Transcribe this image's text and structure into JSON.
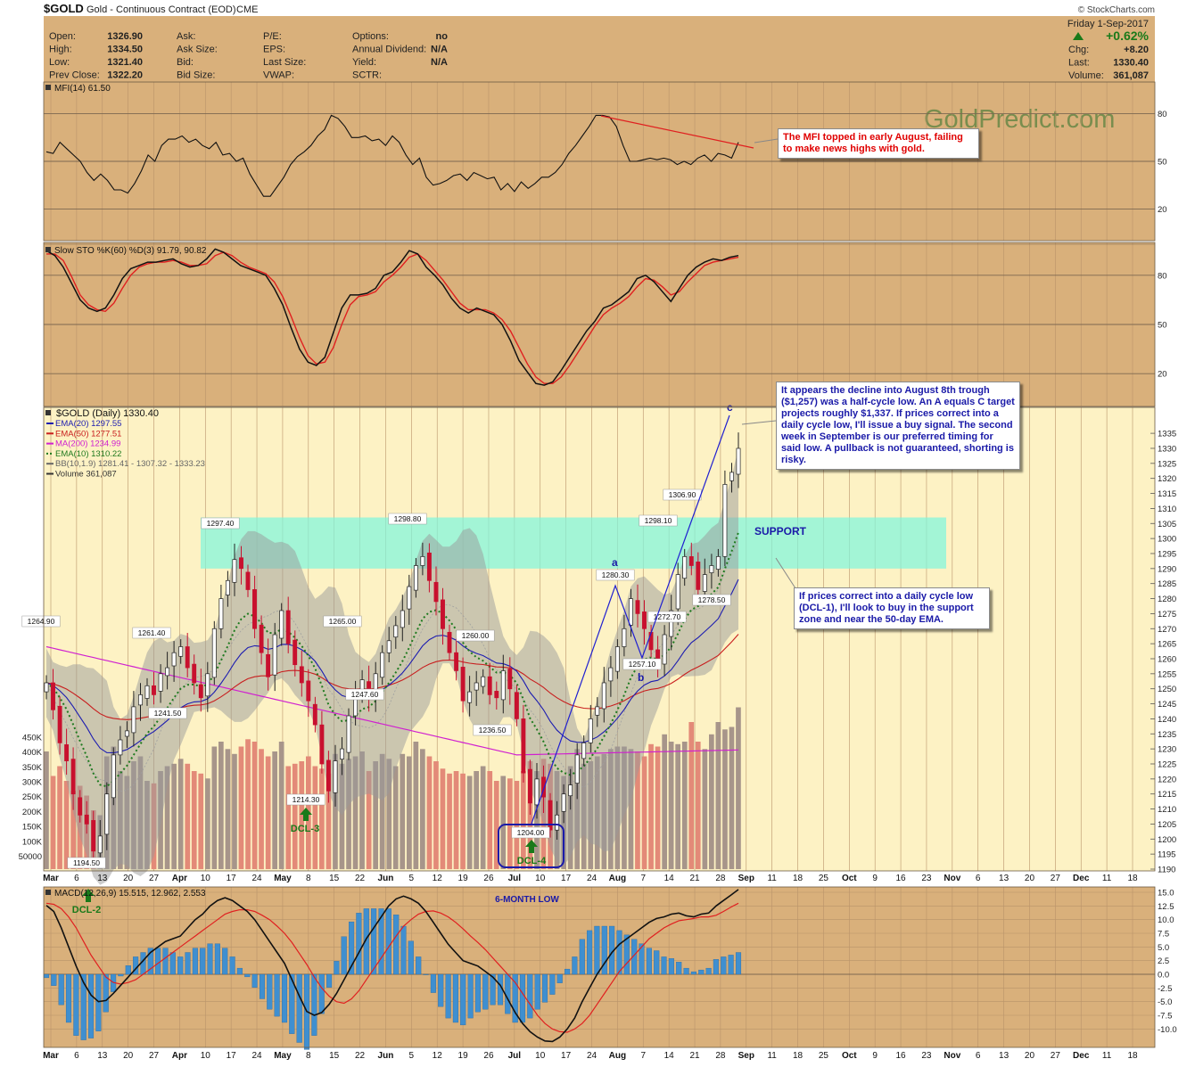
{
  "header": {
    "symbol": "$GOLD",
    "name": "Gold - Continuous Contract (EOD)",
    "exchange": "CME",
    "credit": "© StockCharts.com",
    "date": "Friday  1-Sep-2017",
    "change_pct": "+0.62%",
    "fields": [
      {
        "label": "Open:",
        "value": "1326.90"
      },
      {
        "label": "High:",
        "value": "1334.50"
      },
      {
        "label": "Low:",
        "value": "1321.40"
      },
      {
        "label": "Prev Close:",
        "value": "1322.20"
      },
      {
        "label": "Ask:",
        "value": ""
      },
      {
        "label": "Ask Size:",
        "value": ""
      },
      {
        "label": "Bid:",
        "value": ""
      },
      {
        "label": "Bid Size:",
        "value": ""
      },
      {
        "label": "P/E:",
        "value": ""
      },
      {
        "label": "EPS:",
        "value": ""
      },
      {
        "label": "Last Size:",
        "value": ""
      },
      {
        "label": "VWAP:",
        "value": ""
      },
      {
        "label": "Options:",
        "value": "no"
      },
      {
        "label": "Annual Dividend:",
        "value": "N/A"
      },
      {
        "label": "Yield:",
        "value": "N/A"
      },
      {
        "label": "SCTR:",
        "value": ""
      },
      {
        "label": "Chg:",
        "value": "+8.20"
      },
      {
        "label": "Last:",
        "value": "1330.40"
      },
      {
        "label": "Volume:",
        "value": "361,087"
      }
    ]
  },
  "watermark": "GoldPredict.com",
  "colors": {
    "panel_bg": "#d9b07b",
    "price_bg": "#fdf2c4",
    "up_candle": "#ffffff",
    "down_candle": "#c8102e",
    "support_zone": "#7ff5dd",
    "bb_fill": "#9a9a9a",
    "ema20": "#1c1cb0",
    "ema50": "#c81e1e",
    "ma200": "#d020d0",
    "ema10": "#1f7a1f",
    "vol_up": "#a7958a",
    "vol_down": "#e38a78"
  },
  "annotations": {
    "mfi_note": "The MFI topped in early August, failing to make news highs with gold.",
    "trough_note": "It appears the decline into August 8th trough ($1,257) was a half-cycle low. An A equals C target projects roughly $1,337. If prices correct into a daily cycle low, I'll issue a buy signal. The second week in September is our preferred timing for said low. A pullback is not guaranteed, shorting is risky.",
    "support_note": "If prices correct into a daily cycle low (DCL-1), I'll look to buy in the support zone and near the 50-day EMA.",
    "support_label": "SUPPORT",
    "six_month_low": "6-MONTH LOW",
    "wave_a": "a",
    "wave_b": "b",
    "wave_c": "c",
    "dcl2": "DCL-2",
    "dcl3": "DCL-3",
    "dcl4": "DCL-4"
  },
  "chart_data": [
    {
      "type": "line",
      "panel": "mfi",
      "legend": "MFI(14) 61.50",
      "ylim": [
        0,
        100
      ],
      "y_ticks": [
        20,
        50,
        80
      ],
      "grid": true,
      "series": [
        {
          "name": "MFI(14)",
          "values": [
            56,
            55,
            62,
            58,
            54,
            50,
            43,
            38,
            42,
            38,
            32,
            32,
            30,
            36,
            44,
            54,
            50,
            60,
            64,
            64,
            66,
            62,
            64,
            60,
            58,
            62,
            54,
            55,
            50,
            52,
            42,
            35,
            28,
            28,
            34,
            40,
            48,
            53,
            56,
            60,
            66,
            70,
            79,
            77,
            72,
            65,
            65,
            66,
            63,
            64,
            60,
            66,
            62,
            54,
            48,
            52,
            40,
            35,
            36,
            38,
            41,
            42,
            38,
            43,
            41,
            39,
            40,
            32,
            36,
            31,
            37,
            33,
            36,
            40,
            40,
            43,
            48,
            55,
            60,
            66,
            72,
            79,
            79,
            78,
            72,
            60,
            50,
            50,
            51,
            52,
            51,
            52,
            51,
            48,
            50,
            48,
            52,
            54,
            50,
            55,
            54,
            52,
            62
          ]
        }
      ]
    },
    {
      "type": "line",
      "panel": "slow_stochastic",
      "legend": "Slow STO %K(60) %D(3) 91.79, 90.82",
      "ylim": [
        0,
        100
      ],
      "y_ticks": [
        20,
        50,
        80
      ],
      "grid": true,
      "series": [
        {
          "name": "%K",
          "values": [
            95,
            92,
            85,
            75,
            65,
            60,
            58,
            60,
            68,
            78,
            84,
            86,
            88,
            88,
            89,
            90,
            87,
            85,
            86,
            90,
            96,
            94,
            90,
            86,
            84,
            82,
            80,
            72,
            62,
            48,
            35,
            27,
            25,
            30,
            45,
            60,
            68,
            68,
            69,
            72,
            80,
            82,
            88,
            95,
            93,
            85,
            80,
            74,
            66,
            60,
            57,
            60,
            58,
            56,
            50,
            40,
            28,
            21,
            14,
            13,
            15,
            22,
            30,
            38,
            46,
            52,
            60,
            62,
            66,
            70,
            78,
            80,
            76,
            70,
            64,
            72,
            80,
            85,
            88,
            90,
            89,
            91,
            92
          ]
        },
        {
          "name": "%D",
          "values": [
            93,
            93,
            89,
            79,
            68,
            62,
            59,
            58,
            63,
            72,
            80,
            85,
            87,
            88,
            88,
            89,
            88,
            86,
            86,
            87,
            92,
            94,
            92,
            88,
            85,
            83,
            81,
            76,
            67,
            55,
            42,
            31,
            26,
            27,
            36,
            50,
            62,
            67,
            68,
            70,
            76,
            80,
            85,
            91,
            93,
            89,
            83,
            77,
            70,
            63,
            59,
            59,
            59,
            57,
            53,
            46,
            36,
            26,
            18,
            14,
            14,
            18,
            25,
            33,
            41,
            49,
            56,
            60,
            63,
            67,
            73,
            78,
            77,
            73,
            68,
            70,
            76,
            81,
            86,
            88,
            89,
            90,
            91
          ]
        }
      ]
    },
    {
      "type": "candlestick",
      "panel": "price",
      "title": "$GOLD (Daily) 1330.40",
      "legend": [
        "EMA(20) 1297.55",
        "EMA(50) 1277.51",
        "MA(200) 1234.99",
        "EMA(10) 1310.22",
        "BB(10,1.9) 1281.41 - 1307.32 - 1333.23",
        "Volume 361,087"
      ],
      "ylim": [
        1190,
        1338
      ],
      "y_ticks": [
        1190,
        1195,
        1200,
        1205,
        1210,
        1215,
        1220,
        1225,
        1230,
        1235,
        1240,
        1245,
        1250,
        1255,
        1260,
        1265,
        1270,
        1275,
        1280,
        1285,
        1290,
        1295,
        1300,
        1305,
        1310,
        1315,
        1320,
        1325,
        1330,
        1335
      ],
      "vol_ticks": [
        "50000",
        "100K",
        "150K",
        "200K",
        "250K",
        "300K",
        "350K",
        "400K",
        "450K"
      ],
      "close": [
        1252,
        1243,
        1232,
        1226,
        1215,
        1208,
        1205,
        1196,
        1201,
        1215,
        1228,
        1233,
        1236,
        1244,
        1248,
        1251,
        1248,
        1255,
        1257,
        1262,
        1264,
        1257,
        1252,
        1247,
        1255,
        1270,
        1280,
        1286,
        1293,
        1290,
        1283,
        1270,
        1262,
        1254,
        1268,
        1276,
        1265,
        1258,
        1252,
        1246,
        1238,
        1225,
        1216,
        1226,
        1230,
        1241,
        1248,
        1253,
        1247,
        1255,
        1262,
        1266,
        1271,
        1276,
        1284,
        1291,
        1294,
        1286,
        1279,
        1270,
        1262,
        1256,
        1246,
        1249,
        1252,
        1254,
        1248,
        1247,
        1256,
        1250,
        1240,
        1222,
        1212,
        1220,
        1214,
        1203,
        1208,
        1215,
        1218,
        1228,
        1232,
        1240,
        1244,
        1252,
        1257,
        1264,
        1270,
        1280,
        1275,
        1270,
        1263,
        1257,
        1268,
        1276,
        1288,
        1294,
        1291,
        1283,
        1288,
        1291,
        1294,
        1318,
        1322,
        1330
      ],
      "support_zone": [
        1290,
        1307
      ],
      "price_labels": [
        "1194.50",
        "1264.90",
        "1261.40",
        "1241.50",
        "1297.40",
        "1214.30",
        "1247.60",
        "1265.00",
        "1298.80",
        "1260.00",
        "1236.50",
        "1204.00",
        "1280.30",
        "1257.10",
        "1298.10",
        "1272.70",
        "1306.90",
        "1278.50"
      ]
    },
    {
      "type": "bar",
      "panel": "volume",
      "values": [
        240,
        190,
        210,
        180,
        160,
        170,
        150,
        120,
        110,
        230,
        250,
        200,
        190,
        220,
        230,
        180,
        175,
        200,
        210,
        215,
        225,
        215,
        200,
        195,
        185,
        250,
        260,
        245,
        235,
        250,
        265,
        260,
        245,
        230,
        240,
        260,
        210,
        215,
        220,
        230,
        210,
        205,
        195,
        235,
        215,
        225,
        230,
        240,
        200,
        220,
        235,
        225,
        210,
        235,
        230,
        260,
        245,
        230,
        220,
        205,
        195,
        200,
        195,
        190,
        200,
        210,
        200,
        180,
        190,
        185,
        180,
        200,
        220,
        200,
        225,
        215,
        200,
        190,
        210,
        245,
        215,
        220,
        230,
        235,
        245,
        250,
        250,
        245,
        240,
        230,
        255,
        250,
        275,
        260,
        255,
        260,
        300,
        260,
        245,
        275,
        300,
        285,
        290,
        330
      ]
    },
    {
      "type": "line",
      "panel": "macd",
      "legend": "MACD(12,26,9) 15.515, 12.962, 2.553",
      "ylim": [
        -12.5,
        16
      ],
      "y_ticks": [
        "15.0",
        "12.5",
        "10.0",
        "7.5",
        "5.0",
        "2.5",
        "0.0",
        "-2.5",
        "-5.0",
        "-7.5",
        "-10.0"
      ],
      "grid": true,
      "series": [
        {
          "name": "MACD",
          "values": [
            12.6,
            11.5,
            8.5,
            5.0,
            1.5,
            -1.5,
            -3.8,
            -5.0,
            -4.8,
            -3.5,
            -2.0,
            -0.5,
            1.0,
            2.5,
            4.0,
            5.0,
            6.0,
            6.5,
            7.0,
            8.5,
            10.0,
            11.0,
            12.5,
            13.5,
            14.0,
            13.5,
            12.5,
            11.5,
            10.0,
            8.0,
            6.0,
            4.0,
            2.0,
            -1.0,
            -4.0,
            -6.8,
            -7.5,
            -7.0,
            -5.5,
            -3.5,
            -1.0,
            1.5,
            4.0,
            6.5,
            8.5,
            10.5,
            12.5,
            13.8,
            14.3,
            13.8,
            13.0,
            11.5,
            9.5,
            7.5,
            5.5,
            4.0,
            2.5,
            2.0,
            1.5,
            0.5,
            -0.5,
            -2.0,
            -4.5,
            -7.0,
            -9.0,
            -10.5,
            -11.5,
            -12.2,
            -12.3,
            -11.5,
            -10.0,
            -8.0,
            -5.0,
            -2.5,
            0.0,
            2.0,
            4.0,
            5.5,
            6.5,
            7.5,
            8.5,
            9.5,
            10.2,
            10.5,
            11.0,
            11.2,
            10.7,
            10.5,
            11.0,
            11.2,
            12.5,
            13.5,
            14.5,
            15.5
          ]
        },
        {
          "name": "Signal",
          "values": [
            13.0,
            12.8,
            12.0,
            10.5,
            8.5,
            6.0,
            3.5,
            1.5,
            -0.5,
            -1.5,
            -1.8,
            -1.5,
            -1.0,
            0.0,
            1.0,
            2.0,
            3.0,
            4.0,
            5.0,
            6.0,
            7.0,
            8.0,
            9.0,
            10.0,
            11.0,
            11.5,
            11.8,
            11.8,
            11.5,
            10.8,
            10.0,
            8.8,
            7.5,
            5.8,
            3.8,
            1.8,
            -0.5,
            -2.5,
            -4.0,
            -5.0,
            -5.3,
            -4.5,
            -3.0,
            -1.0,
            1.0,
            3.0,
            5.0,
            7.0,
            8.8,
            10.0,
            11.0,
            11.5,
            11.6,
            11.2,
            10.5,
            9.5,
            8.3,
            7.0,
            5.8,
            4.5,
            3.0,
            1.5,
            0.0,
            -1.5,
            -3.5,
            -5.5,
            -7.5,
            -9.0,
            -10.0,
            -10.5,
            -10.6,
            -10.0,
            -9.0,
            -7.5,
            -5.5,
            -3.5,
            -1.5,
            0.5,
            2.0,
            3.5,
            5.0,
            6.5,
            7.5,
            8.5,
            9.2,
            9.8,
            10.0,
            10.2,
            10.5,
            10.5,
            10.8,
            11.5,
            12.3,
            13.0
          ]
        }
      ]
    }
  ],
  "x_axis": [
    "Mar",
    "6",
    "13",
    "20",
    "27",
    "Apr",
    "10",
    "17",
    "24",
    "May",
    "8",
    "15",
    "22",
    "Jun",
    "5",
    "12",
    "19",
    "26",
    "Jul",
    "10",
    "17",
    "24",
    "Aug",
    "7",
    "14",
    "21",
    "28",
    "Sep",
    "11",
    "18",
    "25",
    "Oct",
    "9",
    "16",
    "23",
    "Nov",
    "6",
    "13",
    "20",
    "27",
    "Dec",
    "11",
    "18"
  ]
}
